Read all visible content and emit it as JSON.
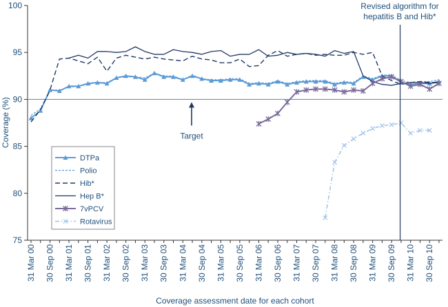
{
  "chart_data": {
    "type": "line",
    "ylabel": "Coverage (%)",
    "xlabel": "Coverage assessment date for each cohort",
    "ylim": [
      75,
      100
    ],
    "yticks": [
      75,
      80,
      85,
      90,
      95,
      100
    ],
    "x_tick_labels": [
      "31 Mar 00",
      "30 Sep 00",
      "31 Mar 01",
      "30 Sep 01",
      "31 Mar 02",
      "30 Sep 02",
      "31 Mar 03",
      "30 Sep 03",
      "31 Mar 04",
      "30 Sep 04",
      "31 Mar 05",
      "30 Sep 05",
      "31 Mar 06",
      "30 Sep 06",
      "31 Mar 07",
      "30 Sep 07",
      "31 Mar 08",
      "30 Sep 08",
      "31 Mar 09",
      "30 Sep 09",
      "31 Mar 10",
      "30 Sep 10"
    ],
    "x_step_note": "quarterly points; index 0 = 31 Mar 00, index 43 = 30 Sep 10",
    "target": {
      "value": 90,
      "label": "Target"
    },
    "annotation": {
      "line1": "Revised algorithm for",
      "line2": "hepatitis B and Hib*",
      "at_index": 38.9
    },
    "legend_position": "bottom-left",
    "series": [
      {
        "name": "DTPa",
        "color": "#5b9bd5",
        "style": "solid-triangle",
        "start": 0,
        "values": [
          88.0,
          88.8,
          91.0,
          90.9,
          91.4,
          91.4,
          91.7,
          91.8,
          91.7,
          92.3,
          92.5,
          92.4,
          92.1,
          92.8,
          92.4,
          92.4,
          92.1,
          92.5,
          92.2,
          92.0,
          92.0,
          92.1,
          92.1,
          91.6,
          91.7,
          91.6,
          91.9,
          91.6,
          91.8,
          91.9,
          91.9,
          91.9,
          91.6,
          91.8,
          91.7,
          92.4,
          92.1,
          92.5,
          92.5,
          91.8,
          91.6,
          91.7,
          91.7,
          91.9
        ]
      },
      {
        "name": "Polio",
        "color": "#5b9bd5",
        "style": "short-dash",
        "start": 0,
        "values": [
          88.3,
          89.0,
          91.0,
          91.0,
          91.3,
          91.4,
          91.6,
          91.8,
          91.8,
          92.3,
          92.4,
          92.4,
          92.3,
          92.8,
          92.5,
          92.5,
          92.1,
          92.6,
          92.2,
          92.1,
          92.1,
          92.2,
          92.2,
          91.7,
          91.8,
          91.7,
          92.0,
          91.7,
          91.9,
          92.0,
          92.0,
          92.0,
          91.7,
          91.9,
          91.8,
          92.5,
          92.2,
          92.6,
          92.6,
          92.0,
          91.8,
          91.9,
          91.9,
          92.1
        ]
      },
      {
        "name": "Hib*",
        "color": "#1f3864",
        "style": "long-dash",
        "start": 0,
        "values": [
          87.6,
          88.9,
          91.0,
          94.3,
          94.4,
          94.1,
          93.8,
          94.5,
          93.0,
          94.4,
          94.7,
          94.5,
          94.3,
          94.5,
          94.3,
          94.2,
          94.1,
          94.6,
          94.3,
          94.2,
          93.9,
          93.9,
          94.3,
          93.5,
          93.6,
          94.7,
          95.2,
          94.6,
          94.8,
          94.9,
          94.7,
          94.8,
          94.7,
          94.7,
          95.0,
          94.8,
          95.0,
          92.5,
          92.0,
          91.6,
          91.8,
          91.9,
          91.8,
          91.8
        ]
      },
      {
        "name": "Hep B*",
        "color": "#1f3864",
        "style": "solid",
        "start": 4,
        "values": [
          94.4,
          94.7,
          94.4,
          95.1,
          95.1,
          95.0,
          95.1,
          95.6,
          95.1,
          94.8,
          94.8,
          95.3,
          95.1,
          95.0,
          94.8,
          95.1,
          95.2,
          94.6,
          94.8,
          94.8,
          95.3,
          94.6,
          94.7,
          95.0,
          94.8,
          94.9,
          94.8,
          94.6,
          95.2,
          94.9,
          95.1,
          92.5,
          91.9,
          91.6,
          91.5,
          91.7,
          91.8,
          91.8,
          91.7,
          91.8
        ]
      },
      {
        "name": "7vPCV",
        "color": "#7a6a9a",
        "style": "solid-star",
        "start": 24,
        "values": [
          87.4,
          87.9,
          88.5,
          89.7,
          90.8,
          91.0,
          91.1,
          91.1,
          91.0,
          90.8,
          91.0,
          90.9,
          91.7,
          92.2,
          92.4,
          91.9,
          91.4,
          91.6,
          91.1,
          91.7
        ]
      },
      {
        "name": "Rotavirus",
        "color": "#9dc3e6",
        "style": "dash-dot-x",
        "start": 31,
        "values": [
          77.4,
          83.3,
          85.1,
          85.8,
          86.4,
          86.9,
          87.2,
          87.3,
          87.5,
          86.4,
          86.7,
          86.7
        ]
      }
    ]
  }
}
